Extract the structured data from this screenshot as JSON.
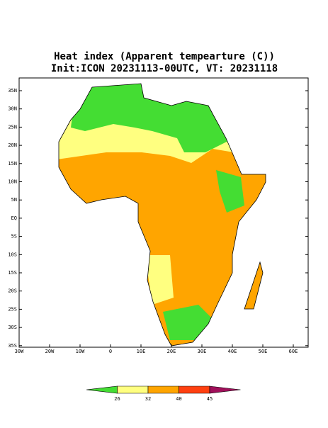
{
  "header": {
    "title": "Heat index (Apparent tempearture (C))",
    "subtitle": "Init:ICON 20231113-00UTC, VT: 20231118"
  },
  "map": {
    "lat_labels": [
      "35N",
      "30N",
      "25N",
      "20N",
      "15N",
      "10N",
      "5N",
      "EQ",
      "5S",
      "10S",
      "15S",
      "20S",
      "25S",
      "30S",
      "35S"
    ],
    "lon_labels": [
      "30W",
      "20W",
      "10W",
      "0",
      "10E",
      "20E",
      "30E",
      "40E",
      "50E",
      "60E"
    ]
  },
  "colorbar": {
    "labels": [
      26,
      32,
      40,
      45
    ],
    "colors": [
      "#44dd33",
      "#ffff80",
      "#ffa500",
      "#ff4010",
      "#a0105a"
    ]
  }
}
